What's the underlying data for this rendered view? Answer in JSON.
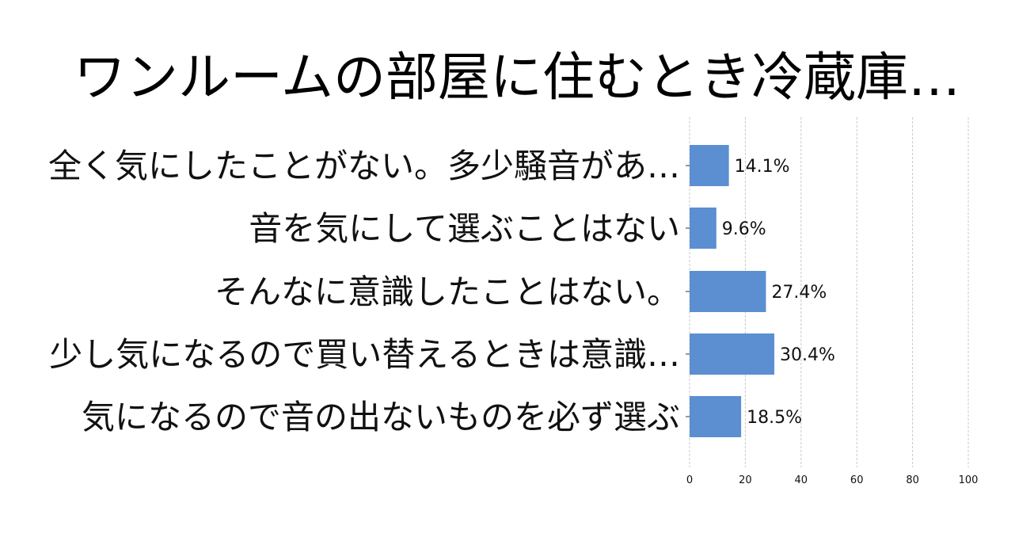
{
  "chart_data": {
    "type": "bar",
    "orientation": "horizontal",
    "title": "ワンルームの部屋に住むとき冷蔵庫…",
    "categories": [
      "全く気にしたことがない。多少騒音があ…",
      "音を気にして選ぶことはない",
      "そんなに意識したことはない。",
      "少し気になるので買い替えるときは意識…",
      "気になるので音の出ないものを必ず選ぶ"
    ],
    "values": [
      14.1,
      9.6,
      27.4,
      30.4,
      18.5
    ],
    "value_labels": [
      "14.1%",
      "9.6%",
      "27.4%",
      "30.4%",
      "18.5%"
    ],
    "xlim": [
      0,
      100
    ],
    "xticks": [
      "0",
      "20",
      "40",
      "60",
      "80",
      "100"
    ],
    "xlabel": "",
    "ylabel": "",
    "grid": "vertical dashed",
    "bar_color": "#5b8fd2"
  }
}
